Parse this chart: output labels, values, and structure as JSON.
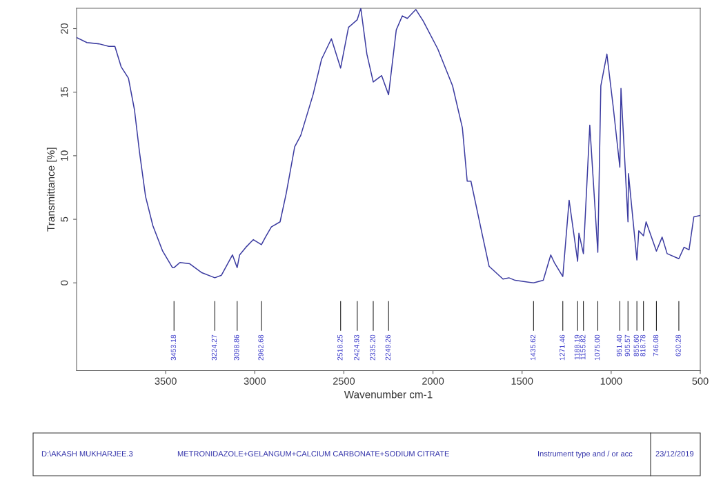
{
  "chart_data": {
    "type": "line",
    "xlabel": "Wavenumber cm-1",
    "ylabel": "Transmittance [%]",
    "xlim": [
      4000,
      500
    ],
    "ylim": [
      -6.9,
      21.6
    ],
    "xticks": [
      3500,
      3000,
      2500,
      2000,
      1500,
      1000,
      500
    ],
    "yticks": [
      0,
      5,
      10,
      15,
      20
    ],
    "grid": false,
    "marker": "none",
    "line_style": "solid",
    "series": [
      {
        "color": "#3b3ba0",
        "x": [
          4000,
          3942,
          3873,
          3819,
          3785,
          3750,
          3709,
          3675,
          3647,
          3613,
          3572,
          3517,
          3462,
          3453.18,
          3420,
          3365,
          3297,
          3224.27,
          3187,
          3125,
          3098.86,
          3085,
          3050,
          3008,
          2962.68,
          2940,
          2907,
          2858,
          2824,
          2776,
          2742,
          2673,
          2625,
          2570,
          2518.25,
          2474,
          2424.93,
          2405,
          2371,
          2335.2,
          2288,
          2249.26,
          2206,
          2172,
          2144,
          2096,
          2055,
          1973,
          1890,
          1835,
          1808,
          1787,
          1725,
          1685,
          1607,
          1574,
          1539,
          1435.62,
          1381,
          1339,
          1319,
          1271.46,
          1236,
          1188.19,
          1181,
          1155.82,
          1120,
          1075.0,
          1058,
          1024,
          989,
          951.4,
          945,
          905.57,
          903,
          855.6,
          845,
          818.78,
          804,
          746.08,
          714,
          686,
          620.28,
          591,
          563,
          536,
          500
        ],
        "values": [
          19.3,
          18.9,
          18.8,
          18.6,
          18.6,
          17.0,
          16.1,
          13.6,
          10.3,
          6.8,
          4.5,
          2.5,
          1.2,
          1.2,
          1.6,
          1.5,
          0.8,
          0.4,
          0.6,
          2.2,
          1.2,
          2.2,
          2.8,
          3.4,
          3.0,
          3.6,
          4.4,
          4.8,
          7.0,
          10.7,
          11.6,
          14.8,
          17.6,
          19.2,
          16.9,
          20.1,
          20.7,
          21.6,
          18.0,
          15.8,
          16.3,
          14.8,
          19.9,
          21.0,
          20.8,
          21.5,
          20.6,
          18.4,
          15.5,
          12.2,
          8.0,
          8.0,
          3.9,
          1.3,
          0.3,
          0.4,
          0.2,
          0.0,
          0.2,
          2.2,
          1.6,
          0.5,
          6.5,
          1.7,
          3.9,
          2.3,
          12.4,
          2.4,
          15.5,
          18.0,
          13.9,
          9.1,
          15.3,
          4.8,
          8.6,
          1.8,
          4.1,
          3.7,
          4.8,
          2.5,
          3.6,
          2.3,
          1.9,
          2.8,
          2.6,
          5.2,
          5.3
        ]
      }
    ],
    "annotations": [
      {
        "text": "3453.18",
        "x": 3453.18
      },
      {
        "text": "3224.27",
        "x": 3224.27
      },
      {
        "text": "3098.86",
        "x": 3098.86
      },
      {
        "text": "2962.68",
        "x": 2962.68
      },
      {
        "text": "2518.25",
        "x": 2518.25
      },
      {
        "text": "2424.93",
        "x": 2424.93
      },
      {
        "text": "2335.20",
        "x": 2335.2
      },
      {
        "text": "2249.26",
        "x": 2249.26
      },
      {
        "text": "1435.62",
        "x": 1435.62
      },
      {
        "text": "1271.46",
        "x": 1271.46
      },
      {
        "text": "1188.19",
        "x": 1188.19
      },
      {
        "text": "1155.82",
        "x": 1155.82
      },
      {
        "text": "1075.00",
        "x": 1075.0
      },
      {
        "text": "951.40",
        "x": 951.4
      },
      {
        "text": "905.57",
        "x": 905.57
      },
      {
        "text": "855.60",
        "x": 855.6
      },
      {
        "text": "818.78",
        "x": 818.78
      },
      {
        "text": "746.08",
        "x": 746.08
      },
      {
        "text": "620.28",
        "x": 620.28
      },
      "D:\\AKASH MUKHARJEE.3",
      "METRONIDAZOLE+GELANGUM+CALCIUM CARBONATE+SODIUM CITRATE",
      "Instrument type and / or acc",
      "23/12/2019"
    ]
  }
}
